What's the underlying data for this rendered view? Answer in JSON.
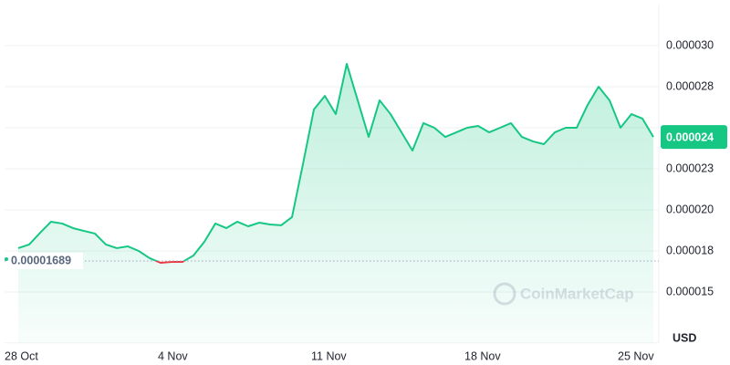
{
  "chart_data": {
    "type": "line",
    "categories": [
      "28 Oct",
      null,
      null,
      null,
      null,
      null,
      null,
      null,
      null,
      null,
      null,
      null,
      null,
      null,
      "4 Nov",
      null,
      null,
      null,
      null,
      null,
      null,
      null,
      null,
      null,
      null,
      null,
      null,
      null,
      "11 Nov",
      null,
      null,
      null,
      null,
      null,
      null,
      null,
      null,
      null,
      null,
      null,
      null,
      null,
      "18 Nov",
      null,
      null,
      null,
      null,
      null,
      null,
      null,
      null,
      null,
      null,
      null,
      null,
      null,
      "25 Nov",
      null,
      null
    ],
    "series": [
      {
        "color": "#16c784",
        "below_color": "#ea3943",
        "values": [
          1.767e-05,
          1.789e-05,
          1.861e-05,
          1.928e-05,
          1.917e-05,
          1.889e-05,
          1.872e-05,
          1.856e-05,
          1.789e-05,
          1.767e-05,
          1.778e-05,
          1.75e-05,
          1.706e-05,
          1.678e-05,
          1.683e-05,
          1.683e-05,
          1.722e-05,
          1.806e-05,
          1.917e-05,
          1.889e-05,
          1.928e-05,
          1.9e-05,
          1.922e-05,
          1.911e-05,
          1.906e-05,
          1.956e-05,
          2.278e-05,
          2.611e-05,
          2.694e-05,
          2.583e-05,
          2.889e-05,
          2.667e-05,
          2.444e-05,
          2.667e-05,
          2.583e-05,
          2.472e-05,
          2.361e-05,
          2.528e-05,
          2.5e-05,
          2.444e-05,
          2.472e-05,
          2.5e-05,
          2.511e-05,
          2.472e-05,
          2.5e-05,
          2.528e-05,
          2.444e-05,
          2.417e-05,
          2.4e-05,
          2.472e-05,
          2.5e-05,
          2.5e-05,
          2.639e-05,
          2.75e-05,
          2.667e-05,
          2.5e-05,
          2.583e-05,
          2.556e-05,
          2.444e-05
        ]
      }
    ],
    "ylim": [
      1.19e-05,
      3.25e-05
    ],
    "yticks": [
      {
        "value": 1.5e-05,
        "label": "0.000015"
      },
      {
        "value": 1.75e-05,
        "label": "0.000018"
      },
      {
        "value": 2e-05,
        "label": "0.000020"
      },
      {
        "value": 2.25e-05,
        "label": "0.000023"
      },
      {
        "value": 2.5e-05,
        "label": ""
      },
      {
        "value": 2.75e-05,
        "label": "0.000028"
      },
      {
        "value": 3e-05,
        "label": "0.000030"
      }
    ],
    "reference": 1.689e-05,
    "current_price": {
      "value": 2.444e-05,
      "label": "0.000024"
    },
    "currency": "USD",
    "watermark": "CoinMarketCap",
    "grid": true
  }
}
